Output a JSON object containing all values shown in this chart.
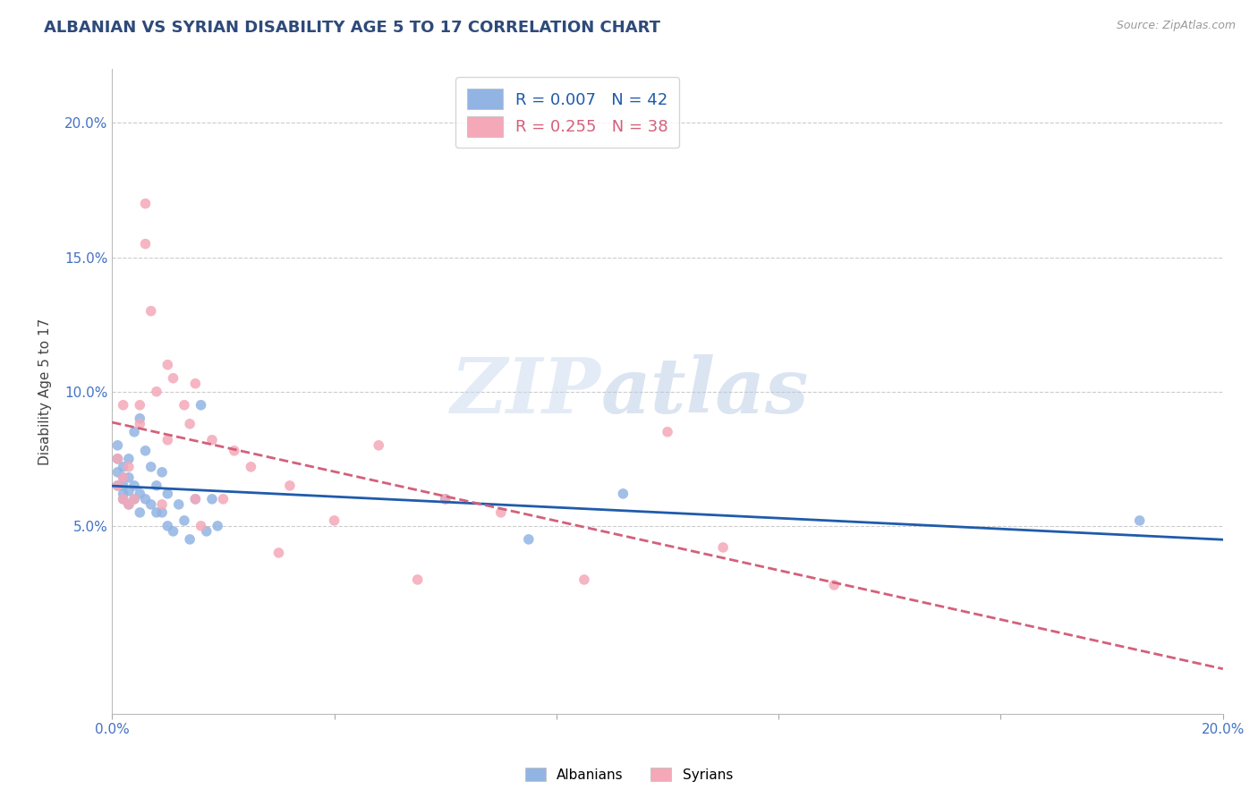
{
  "title": "ALBANIAN VS SYRIAN DISABILITY AGE 5 TO 17 CORRELATION CHART",
  "source_text": "Source: ZipAtlas.com",
  "ylabel": "Disability Age 5 to 17",
  "xlim": [
    0.0,
    0.2
  ],
  "ylim": [
    -0.02,
    0.22
  ],
  "yticks": [
    0.05,
    0.1,
    0.15,
    0.2
  ],
  "ytick_labels": [
    "5.0%",
    "10.0%",
    "15.0%",
    "20.0%"
  ],
  "xtick_positions": [
    0.0,
    0.04,
    0.08,
    0.12,
    0.16,
    0.2
  ],
  "xtick_labels": [
    "0.0%",
    "",
    "",
    "",
    "",
    "20.0%"
  ],
  "albanian_color": "#92b4e3",
  "syrian_color": "#f4a8b8",
  "albanian_R": 0.007,
  "albanian_N": 42,
  "syrian_R": 0.255,
  "syrian_N": 38,
  "albanian_line_color": "#1f5bab",
  "syrian_line_color": "#d4607a",
  "watermark": "ZIPatlas",
  "albanian_x": [
    0.001,
    0.001,
    0.001,
    0.001,
    0.002,
    0.002,
    0.002,
    0.002,
    0.002,
    0.003,
    0.003,
    0.003,
    0.003,
    0.004,
    0.004,
    0.004,
    0.005,
    0.005,
    0.005,
    0.006,
    0.006,
    0.007,
    0.007,
    0.008,
    0.008,
    0.009,
    0.009,
    0.01,
    0.01,
    0.011,
    0.012,
    0.013,
    0.014,
    0.015,
    0.016,
    0.017,
    0.018,
    0.019,
    0.06,
    0.075,
    0.092,
    0.185
  ],
  "albanian_y": [
    0.065,
    0.07,
    0.075,
    0.08,
    0.06,
    0.062,
    0.065,
    0.068,
    0.072,
    0.058,
    0.063,
    0.068,
    0.075,
    0.06,
    0.065,
    0.085,
    0.055,
    0.062,
    0.09,
    0.06,
    0.078,
    0.058,
    0.072,
    0.055,
    0.065,
    0.055,
    0.07,
    0.05,
    0.062,
    0.048,
    0.058,
    0.052,
    0.045,
    0.06,
    0.095,
    0.048,
    0.06,
    0.05,
    0.06,
    0.045,
    0.062,
    0.052
  ],
  "syrian_x": [
    0.001,
    0.001,
    0.002,
    0.002,
    0.002,
    0.003,
    0.003,
    0.004,
    0.005,
    0.005,
    0.006,
    0.006,
    0.007,
    0.008,
    0.009,
    0.01,
    0.01,
    0.011,
    0.013,
    0.014,
    0.015,
    0.015,
    0.016,
    0.018,
    0.02,
    0.022,
    0.025,
    0.03,
    0.032,
    0.04,
    0.048,
    0.055,
    0.06,
    0.07,
    0.085,
    0.1,
    0.11,
    0.13
  ],
  "syrian_y": [
    0.065,
    0.075,
    0.06,
    0.068,
    0.095,
    0.058,
    0.072,
    0.06,
    0.088,
    0.095,
    0.155,
    0.17,
    0.13,
    0.1,
    0.058,
    0.082,
    0.11,
    0.105,
    0.095,
    0.088,
    0.06,
    0.103,
    0.05,
    0.082,
    0.06,
    0.078,
    0.072,
    0.04,
    0.065,
    0.052,
    0.08,
    0.03,
    0.06,
    0.055,
    0.03,
    0.085,
    0.042,
    0.028
  ],
  "title_color": "#2e4a7a",
  "axis_tick_color": "#4472c4",
  "grid_color": "#cccccc",
  "background_color": "#ffffff"
}
